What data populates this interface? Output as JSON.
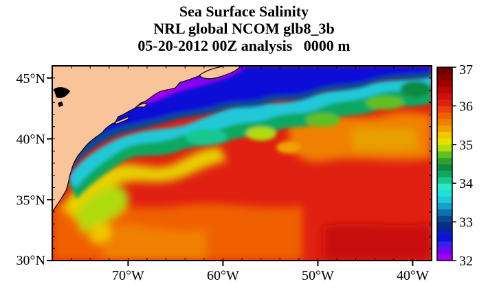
{
  "title": {
    "line1": "Sea Surface Salinity",
    "line2": "NRL global NCOM glb8_3b",
    "line3": "05-20-2012 00Z analysis   0000 m"
  },
  "map": {
    "lat_range": [
      30,
      46
    ],
    "lon_range": [
      -78,
      -38
    ],
    "lat_ticks": [
      {
        "value": 45,
        "label": "45°N"
      },
      {
        "value": 40,
        "label": "40°N"
      },
      {
        "value": 35,
        "label": "35°N"
      },
      {
        "value": 30,
        "label": "30°N"
      }
    ],
    "lon_ticks": [
      {
        "value": -70,
        "label": "70°W"
      },
      {
        "value": -60,
        "label": "60°W"
      },
      {
        "value": -50,
        "label": "50°W"
      },
      {
        "value": -40,
        "label": "40°W"
      }
    ],
    "land_color": "#f9c49a",
    "coast_color": "#000000"
  },
  "colorbar": {
    "min": 32,
    "max": 37,
    "labels": [
      "37",
      "36",
      "35",
      "34",
      "33",
      "32"
    ],
    "colors_low_to_high": [
      "#a000f0",
      "#7a00f5",
      "#3a20f0",
      "#1010d8",
      "#0820b8",
      "#0a2e80",
      "#0a4a90",
      "#1070b0",
      "#1aa0c8",
      "#20c8d8",
      "#20e0d8",
      "#30e8c0",
      "#18c890",
      "#10a860",
      "#108a40",
      "#30a030",
      "#60c020",
      "#b0dc10",
      "#e8e000",
      "#f0c800",
      "#f0a000",
      "#f08000",
      "#f06000",
      "#e84010",
      "#e02010",
      "#d01010",
      "#b80808",
      "#a00000",
      "#880000",
      "#700000"
    ]
  }
}
